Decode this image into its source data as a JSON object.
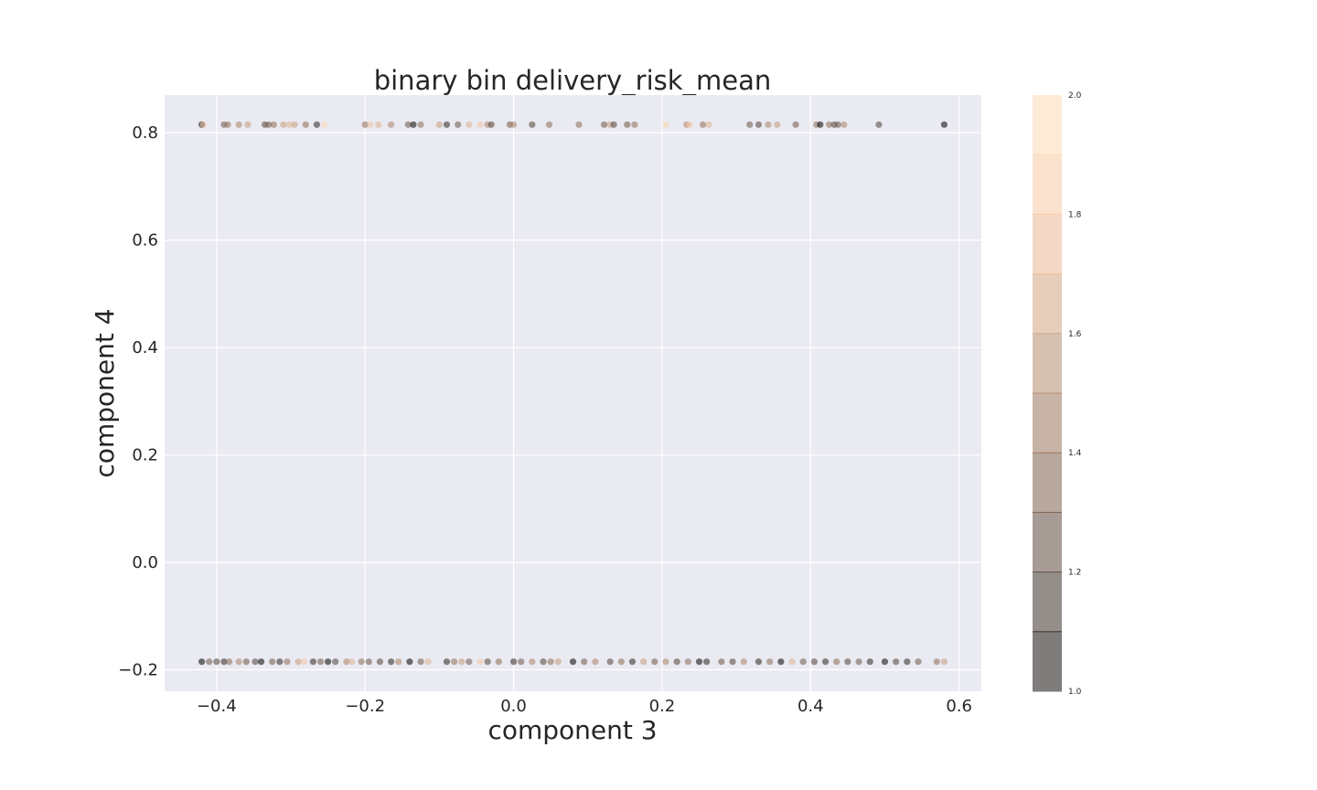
{
  "chart_data": {
    "type": "scatter",
    "title": "binary bin delivery_risk_mean",
    "xlabel": "component 3",
    "ylabel": "component 4",
    "xlim": [
      -0.47,
      0.63
    ],
    "ylim": [
      -0.24,
      0.87
    ],
    "xticks": [
      -0.4,
      -0.2,
      0.0,
      0.2,
      0.4,
      0.6
    ],
    "xtick_labels": [
      "−0.4",
      "−0.2",
      "0.0",
      "0.2",
      "0.4",
      "0.6"
    ],
    "yticks": [
      -0.2,
      0.0,
      0.2,
      0.4,
      0.6,
      0.8
    ],
    "ytick_labels": [
      "−0.2",
      "0.0",
      "0.2",
      "0.4",
      "0.6",
      "0.8"
    ],
    "grid": true,
    "background": "#eaeaf2",
    "colorbar": {
      "min": 1.0,
      "max": 2.0,
      "ticks": [
        1.0,
        1.2,
        1.4,
        1.6,
        1.8,
        2.0
      ],
      "tick_labels": [
        "1.0",
        "1.2",
        "1.4",
        "1.6",
        "1.8",
        "2.0"
      ],
      "colors": [
        "#000000",
        "#2b2421",
        "#4e3f36",
        "#6d5546",
        "#8c6b56",
        "#a98266",
        "#c49a7a",
        "#dfb08e",
        "#f2c39e",
        "#fbd3ad",
        "#ffe1be"
      ],
      "alpha": 0.55
    },
    "points": [
      {
        "x": -0.42,
        "y": 0.815,
        "c": 1.0
      },
      {
        "x": -0.418,
        "y": 0.815,
        "c": 1.8
      },
      {
        "x": -0.39,
        "y": 0.815,
        "c": 1.3
      },
      {
        "x": -0.385,
        "y": 0.815,
        "c": 1.4
      },
      {
        "x": -0.37,
        "y": 0.815,
        "c": 1.5
      },
      {
        "x": -0.358,
        "y": 0.815,
        "c": 1.6
      },
      {
        "x": -0.335,
        "y": 0.815,
        "c": 1.2
      },
      {
        "x": -0.33,
        "y": 0.815,
        "c": 1.3
      },
      {
        "x": -0.323,
        "y": 0.815,
        "c": 1.4
      },
      {
        "x": -0.31,
        "y": 0.815,
        "c": 1.6
      },
      {
        "x": -0.302,
        "y": 0.815,
        "c": 1.7
      },
      {
        "x": -0.295,
        "y": 0.815,
        "c": 1.6
      },
      {
        "x": -0.28,
        "y": 0.815,
        "c": 1.4
      },
      {
        "x": -0.265,
        "y": 0.815,
        "c": 1.1
      },
      {
        "x": -0.255,
        "y": 0.815,
        "c": 1.9
      },
      {
        "x": -0.2,
        "y": 0.815,
        "c": 1.4
      },
      {
        "x": -0.193,
        "y": 0.815,
        "c": 1.8
      },
      {
        "x": -0.182,
        "y": 0.815,
        "c": 1.7
      },
      {
        "x": -0.165,
        "y": 0.815,
        "c": 1.5
      },
      {
        "x": -0.142,
        "y": 0.815,
        "c": 1.3
      },
      {
        "x": -0.135,
        "y": 0.815,
        "c": 1.0
      },
      {
        "x": -0.125,
        "y": 0.815,
        "c": 1.4
      },
      {
        "x": -0.1,
        "y": 0.815,
        "c": 1.6
      },
      {
        "x": -0.09,
        "y": 0.815,
        "c": 1.1
      },
      {
        "x": -0.075,
        "y": 0.815,
        "c": 1.3
      },
      {
        "x": -0.06,
        "y": 0.815,
        "c": 1.7
      },
      {
        "x": -0.045,
        "y": 0.815,
        "c": 1.8
      },
      {
        "x": -0.035,
        "y": 0.815,
        "c": 1.5
      },
      {
        "x": -0.03,
        "y": 0.815,
        "c": 1.2
      },
      {
        "x": -0.005,
        "y": 0.815,
        "c": 1.3
      },
      {
        "x": 0.0,
        "y": 0.815,
        "c": 1.5
      },
      {
        "x": 0.025,
        "y": 0.815,
        "c": 1.2
      },
      {
        "x": 0.048,
        "y": 0.815,
        "c": 1.4
      },
      {
        "x": 0.088,
        "y": 0.815,
        "c": 1.4
      },
      {
        "x": 0.122,
        "y": 0.815,
        "c": 1.3
      },
      {
        "x": 0.13,
        "y": 0.815,
        "c": 1.6
      },
      {
        "x": 0.135,
        "y": 0.815,
        "c": 1.2
      },
      {
        "x": 0.153,
        "y": 0.815,
        "c": 1.3
      },
      {
        "x": 0.163,
        "y": 0.815,
        "c": 1.4
      },
      {
        "x": 0.205,
        "y": 0.815,
        "c": 1.9
      },
      {
        "x": 0.233,
        "y": 0.815,
        "c": 1.5
      },
      {
        "x": 0.237,
        "y": 0.815,
        "c": 1.8
      },
      {
        "x": 0.255,
        "y": 0.815,
        "c": 1.4
      },
      {
        "x": 0.263,
        "y": 0.815,
        "c": 1.7
      },
      {
        "x": 0.318,
        "y": 0.815,
        "c": 1.3
      },
      {
        "x": 0.33,
        "y": 0.815,
        "c": 1.2
      },
      {
        "x": 0.343,
        "y": 0.815,
        "c": 1.5
      },
      {
        "x": 0.355,
        "y": 0.815,
        "c": 1.6
      },
      {
        "x": 0.38,
        "y": 0.815,
        "c": 1.3
      },
      {
        "x": 0.408,
        "y": 0.815,
        "c": 1.4
      },
      {
        "x": 0.413,
        "y": 0.815,
        "c": 1.0
      },
      {
        "x": 0.425,
        "y": 0.815,
        "c": 1.4
      },
      {
        "x": 0.432,
        "y": 0.815,
        "c": 1.2
      },
      {
        "x": 0.437,
        "y": 0.815,
        "c": 1.3
      },
      {
        "x": 0.445,
        "y": 0.815,
        "c": 1.5
      },
      {
        "x": 0.492,
        "y": 0.815,
        "c": 1.2
      },
      {
        "x": 0.58,
        "y": 0.815,
        "c": 1.0
      },
      {
        "x": -0.42,
        "y": -0.185,
        "c": 1.0
      },
      {
        "x": -0.41,
        "y": -0.185,
        "c": 1.3
      },
      {
        "x": -0.4,
        "y": -0.185,
        "c": 1.2
      },
      {
        "x": -0.39,
        "y": -0.185,
        "c": 1.1
      },
      {
        "x": -0.383,
        "y": -0.185,
        "c": 1.4
      },
      {
        "x": -0.37,
        "y": -0.185,
        "c": 1.5
      },
      {
        "x": -0.36,
        "y": -0.185,
        "c": 1.3
      },
      {
        "x": -0.348,
        "y": -0.185,
        "c": 1.2
      },
      {
        "x": -0.34,
        "y": -0.185,
        "c": 1.0
      },
      {
        "x": -0.325,
        "y": -0.185,
        "c": 1.3
      },
      {
        "x": -0.315,
        "y": -0.185,
        "c": 1.1
      },
      {
        "x": -0.305,
        "y": -0.185,
        "c": 1.4
      },
      {
        "x": -0.29,
        "y": -0.185,
        "c": 1.6
      },
      {
        "x": -0.282,
        "y": -0.185,
        "c": 1.8
      },
      {
        "x": -0.27,
        "y": -0.185,
        "c": 1.1
      },
      {
        "x": -0.26,
        "y": -0.185,
        "c": 1.3
      },
      {
        "x": -0.25,
        "y": -0.185,
        "c": 1.0
      },
      {
        "x": -0.24,
        "y": -0.185,
        "c": 1.2
      },
      {
        "x": -0.225,
        "y": -0.185,
        "c": 1.5
      },
      {
        "x": -0.218,
        "y": -0.185,
        "c": 1.7
      },
      {
        "x": -0.205,
        "y": -0.185,
        "c": 1.4
      },
      {
        "x": -0.195,
        "y": -0.185,
        "c": 1.3
      },
      {
        "x": -0.18,
        "y": -0.185,
        "c": 1.2
      },
      {
        "x": -0.165,
        "y": -0.185,
        "c": 1.1
      },
      {
        "x": -0.155,
        "y": -0.185,
        "c": 1.5
      },
      {
        "x": -0.14,
        "y": -0.185,
        "c": 1.0
      },
      {
        "x": -0.125,
        "y": -0.185,
        "c": 1.3
      },
      {
        "x": -0.115,
        "y": -0.185,
        "c": 1.7
      },
      {
        "x": -0.09,
        "y": -0.185,
        "c": 1.1
      },
      {
        "x": -0.08,
        "y": -0.185,
        "c": 1.4
      },
      {
        "x": -0.07,
        "y": -0.185,
        "c": 1.6
      },
      {
        "x": -0.06,
        "y": -0.185,
        "c": 1.3
      },
      {
        "x": -0.045,
        "y": -0.185,
        "c": 1.8
      },
      {
        "x": -0.035,
        "y": -0.185,
        "c": 1.2
      },
      {
        "x": -0.02,
        "y": -0.185,
        "c": 1.4
      },
      {
        "x": 0.0,
        "y": -0.185,
        "c": 1.1
      },
      {
        "x": 0.01,
        "y": -0.185,
        "c": 1.3
      },
      {
        "x": 0.025,
        "y": -0.185,
        "c": 1.5
      },
      {
        "x": 0.04,
        "y": -0.185,
        "c": 1.2
      },
      {
        "x": 0.05,
        "y": -0.185,
        "c": 1.4
      },
      {
        "x": 0.06,
        "y": -0.185,
        "c": 1.6
      },
      {
        "x": 0.08,
        "y": -0.185,
        "c": 1.0
      },
      {
        "x": 0.095,
        "y": -0.185,
        "c": 1.3
      },
      {
        "x": 0.11,
        "y": -0.185,
        "c": 1.5
      },
      {
        "x": 0.13,
        "y": -0.185,
        "c": 1.2
      },
      {
        "x": 0.145,
        "y": -0.185,
        "c": 1.4
      },
      {
        "x": 0.16,
        "y": -0.185,
        "c": 1.1
      },
      {
        "x": 0.175,
        "y": -0.185,
        "c": 1.6
      },
      {
        "x": 0.19,
        "y": -0.185,
        "c": 1.3
      },
      {
        "x": 0.205,
        "y": -0.185,
        "c": 1.5
      },
      {
        "x": 0.22,
        "y": -0.185,
        "c": 1.2
      },
      {
        "x": 0.235,
        "y": -0.185,
        "c": 1.4
      },
      {
        "x": 0.25,
        "y": -0.185,
        "c": 1.0
      },
      {
        "x": 0.26,
        "y": -0.185,
        "c": 1.1
      },
      {
        "x": 0.28,
        "y": -0.185,
        "c": 1.3
      },
      {
        "x": 0.295,
        "y": -0.185,
        "c": 1.2
      },
      {
        "x": 0.31,
        "y": -0.185,
        "c": 1.5
      },
      {
        "x": 0.33,
        "y": -0.185,
        "c": 1.1
      },
      {
        "x": 0.345,
        "y": -0.185,
        "c": 1.4
      },
      {
        "x": 0.36,
        "y": -0.185,
        "c": 1.0
      },
      {
        "x": 0.375,
        "y": -0.185,
        "c": 1.7
      },
      {
        "x": 0.39,
        "y": -0.185,
        "c": 1.3
      },
      {
        "x": 0.405,
        "y": -0.185,
        "c": 1.2
      },
      {
        "x": 0.42,
        "y": -0.185,
        "c": 1.1
      },
      {
        "x": 0.435,
        "y": -0.185,
        "c": 1.4
      },
      {
        "x": 0.45,
        "y": -0.185,
        "c": 1.2
      },
      {
        "x": 0.465,
        "y": -0.185,
        "c": 1.3
      },
      {
        "x": 0.48,
        "y": -0.185,
        "c": 1.1
      },
      {
        "x": 0.5,
        "y": -0.185,
        "c": 1.0
      },
      {
        "x": 0.515,
        "y": -0.185,
        "c": 1.2
      },
      {
        "x": 0.53,
        "y": -0.185,
        "c": 1.1
      },
      {
        "x": 0.545,
        "y": -0.185,
        "c": 1.3
      },
      {
        "x": 0.57,
        "y": -0.185,
        "c": 1.4
      },
      {
        "x": 0.58,
        "y": -0.185,
        "c": 1.6
      }
    ]
  }
}
